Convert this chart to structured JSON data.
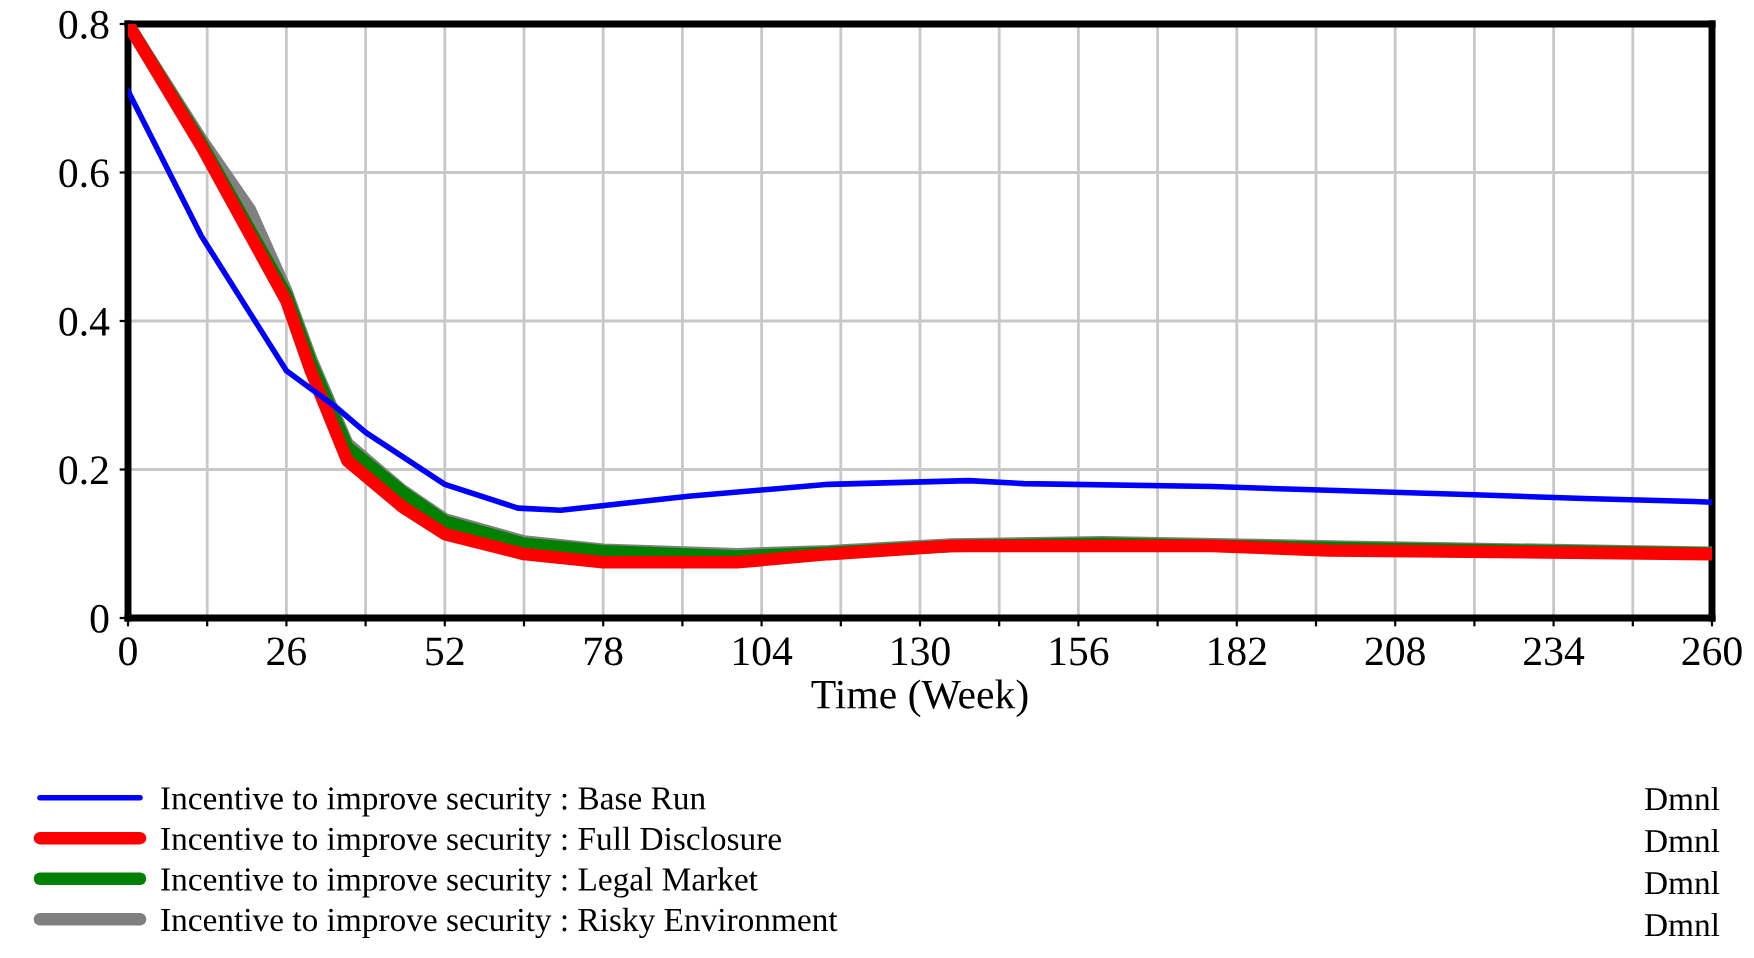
{
  "chart_data": {
    "type": "line",
    "xlabel": "Time (Week)",
    "legend": "bottom",
    "grid": true,
    "xlim": [
      0,
      260
    ],
    "ylim": [
      0,
      0.8
    ],
    "xticks": [
      0,
      {
        "value": 13,
        "label": null
      },
      26,
      {
        "value": 39,
        "label": null
      },
      52,
      {
        "value": 65,
        "label": null
      },
      78,
      {
        "value": 91,
        "label": null
      },
      104,
      {
        "value": 117,
        "label": null
      },
      130,
      {
        "value": 143,
        "label": null
      },
      156,
      {
        "value": 169,
        "label": null
      },
      182,
      {
        "value": 195,
        "label": null
      },
      208,
      {
        "value": 221,
        "label": null
      },
      234,
      {
        "value": 247,
        "label": null
      },
      260
    ],
    "yticks": [
      0,
      0.2,
      0.4,
      0.6,
      0.8
    ],
    "annotations": [
      "Dmnl",
      "Dmnl",
      "Dmnl",
      "Dmnl"
    ],
    "series": [
      {
        "name": "Incentive to improve security : Base Run",
        "color": "#0000ff",
        "x": [
          0,
          12,
          26,
          34,
          39,
          52,
          64,
          71,
          92,
          115,
          138,
          147,
          178,
          193,
          221,
          239,
          257,
          260
        ],
        "values": [
          0.71,
          0.515,
          0.333,
          0.285,
          0.25,
          0.18,
          0.148,
          0.145,
          0.164,
          0.18,
          0.185,
          0.181,
          0.177,
          0.173,
          0.166,
          0.161,
          0.157,
          0.156
        ]
      },
      {
        "name": "Incentive to improve security : Full Disclosure",
        "color": "#ff0000",
        "x": [
          0,
          12,
          26,
          30,
          36,
          45,
          52,
          65,
          78,
          100,
          115,
          135,
          178,
          197,
          260
        ],
        "values": [
          0.8,
          0.636,
          0.427,
          0.333,
          0.212,
          0.15,
          0.113,
          0.086,
          0.075,
          0.075,
          0.086,
          0.097,
          0.097,
          0.091,
          0.086
        ]
      },
      {
        "name": "Incentive to improve security : Legal Market",
        "color": "#008000",
        "x": [
          0,
          12,
          26,
          30,
          36,
          45,
          52,
          65,
          78,
          100,
          115,
          135,
          160,
          200,
          260
        ],
        "values": [
          0.8,
          0.64,
          0.435,
          0.345,
          0.23,
          0.17,
          0.13,
          0.1,
          0.09,
          0.083,
          0.088,
          0.097,
          0.1,
          0.094,
          0.087
        ]
      },
      {
        "name": "Incentive to improve security : Risky Environment",
        "color": "#808080",
        "x": [
          0,
          12,
          20,
          26,
          30,
          36,
          45,
          52,
          65,
          78,
          100,
          115,
          135,
          160,
          200,
          260
        ],
        "values": [
          0.8,
          0.645,
          0.55,
          0.44,
          0.35,
          0.235,
          0.172,
          0.133,
          0.103,
          0.092,
          0.086,
          0.09,
          0.099,
          0.102,
          0.096,
          0.088
        ]
      }
    ]
  }
}
